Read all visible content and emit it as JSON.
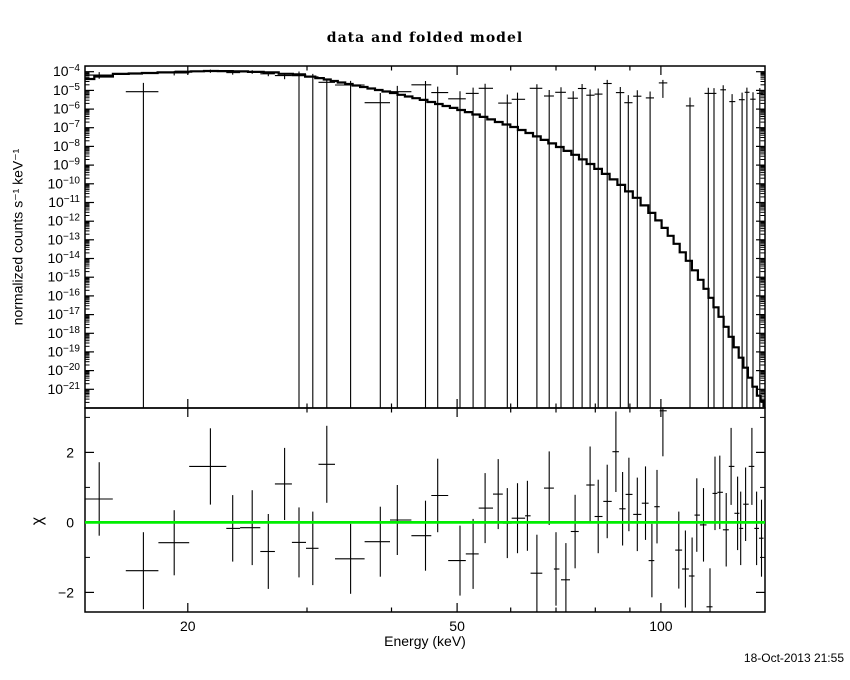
{
  "title": "data and folded model",
  "timestamp": "18-Oct-2013 21:55",
  "chart_data": {
    "type": "scatter",
    "title": "data and folded model",
    "xlabel": "Energy (keV)",
    "xscale": "log",
    "xlim": [
      14.1,
      142.5
    ],
    "x_ticks": {
      "major": [
        {
          "v": 20,
          "label": "20"
        },
        {
          "v": 50,
          "label": "50"
        },
        {
          "v": 100,
          "label": "100"
        }
      ],
      "minor": [
        30,
        40,
        60,
        70,
        80,
        90
      ]
    },
    "spectrum": {
      "ylabel": "normalized counts s⁻¹ keV⁻¹",
      "yscale": "log",
      "ylim_log": [
        -22,
        -3.695
      ],
      "y_tick_exponents": [
        -4,
        -5,
        -6,
        -7,
        -8,
        -9,
        -10,
        -11,
        -12,
        -13,
        -14,
        -15,
        -16,
        -17,
        -18,
        -19,
        -20,
        -21
      ],
      "model": {
        "x": [
          14.1,
          16.0,
          17.5,
          19.8,
          21.6,
          23.9,
          26.6,
          29.3,
          31.4,
          32.9,
          34.6,
          36.4,
          38.3,
          40.3,
          42.4,
          44.6,
          47.0,
          49.4,
          52.0,
          54.7,
          57.6,
          60.7,
          63.9,
          67.3,
          70.9,
          74.7,
          78.7,
          82.9,
          87.4,
          92.1,
          97.1,
          101.3,
          105.5,
          110.0,
          114.6,
          118.6,
          122.7,
          127.0,
          131.4,
          135.5,
          139.7,
          142.5
        ],
        "logy": [
          -4.39,
          -4.12,
          -4.07,
          -4.0,
          -3.96,
          -3.98,
          -4.04,
          -4.18,
          -4.34,
          -4.5,
          -4.66,
          -4.82,
          -4.98,
          -5.14,
          -5.33,
          -5.51,
          -5.73,
          -5.94,
          -6.16,
          -6.42,
          -6.69,
          -6.96,
          -7.28,
          -7.65,
          -8.03,
          -8.45,
          -8.94,
          -9.47,
          -10.06,
          -10.75,
          -11.56,
          -12.36,
          -13.21,
          -14.12,
          -15.14,
          -16.1,
          -17.12,
          -18.19,
          -19.31,
          -20.38,
          -21.34,
          -21.9
        ]
      },
      "points": [
        [
          14.8,
          14.1,
          15.5,
          -4.18,
          -4.02,
          -4.38
        ],
        [
          17.2,
          16.2,
          18.1,
          -5.07,
          -4.6,
          -22
        ],
        [
          19.1,
          18.1,
          20.1,
          -4.07,
          -3.97,
          -4.2
        ],
        [
          21.6,
          20.1,
          22.8,
          -3.97,
          -3.89,
          -4.06
        ],
        [
          23.3,
          22.8,
          23.9,
          -4.05,
          -3.95,
          -4.16
        ],
        [
          24.9,
          23.9,
          25.6,
          -4.01,
          -3.92,
          -4.11
        ],
        [
          26.3,
          25.6,
          26.9,
          -4.11,
          -4.0,
          -4.24
        ],
        [
          27.8,
          26.9,
          28.5,
          -4.21,
          -4.07,
          -4.4
        ],
        [
          29.2,
          28.5,
          29.9,
          -4.11,
          -3.99,
          -22
        ],
        [
          30.6,
          29.9,
          31.2,
          -4.28,
          -4.12,
          -22
        ],
        [
          32.1,
          31.2,
          33.0,
          -4.57,
          -4.37,
          -22
        ],
        [
          34.8,
          33.0,
          36.5,
          -4.71,
          -4.49,
          -22
        ],
        [
          38.5,
          36.5,
          39.8,
          -5.66,
          -5.14,
          -22
        ],
        [
          40.8,
          39.8,
          42.8,
          -5.07,
          -4.76,
          -22
        ],
        [
          44.9,
          42.8,
          45.8,
          -4.7,
          -4.5,
          -22
        ],
        [
          46.8,
          45.8,
          48.5,
          -5.12,
          -4.8,
          -22
        ],
        [
          50.5,
          48.5,
          51.5,
          -5.45,
          -5.05,
          -22
        ],
        [
          52.8,
          51.5,
          53.8,
          -5.16,
          -4.85,
          -22
        ],
        [
          55.0,
          53.8,
          56.5,
          -4.89,
          -4.64,
          -22
        ],
        [
          59.3,
          57.5,
          60.2,
          -5.68,
          -5.22,
          -22
        ],
        [
          61.4,
          60.2,
          63.0,
          -5.48,
          -5.12,
          -22
        ],
        [
          65.6,
          64.0,
          66.8,
          -4.89,
          -4.67,
          -22
        ],
        [
          68.4,
          67.2,
          69.5,
          -5.3,
          -4.98,
          -22
        ],
        [
          71.2,
          69.8,
          72.4,
          -5.1,
          -4.83,
          -22
        ],
        [
          74.2,
          72.8,
          75.4,
          -5.42,
          -5.05,
          -22
        ],
        [
          76.5,
          75.4,
          77.6,
          -4.9,
          -4.66,
          -22
        ],
        [
          78.6,
          77.6,
          79.8,
          -5.26,
          -4.95,
          -22
        ],
        [
          80.8,
          79.8,
          82.0,
          -5.2,
          -4.9,
          -22
        ],
        [
          83.3,
          82.2,
          84.6,
          -4.63,
          -4.44,
          -22
        ],
        [
          87.1,
          85.8,
          88.3,
          -5.12,
          -4.82,
          -22
        ],
        [
          89.5,
          88.3,
          90.8,
          -5.66,
          -5.25,
          -22
        ],
        [
          92.3,
          91.0,
          93.6,
          -5.31,
          -4.99,
          -22
        ],
        [
          96.4,
          95.0,
          97.7,
          -5.4,
          -5.06,
          -22
        ],
        [
          100.7,
          99.3,
          102.2,
          -4.6,
          -4.44,
          -5.4
        ],
        [
          110.4,
          108.9,
          112.0,
          -5.83,
          -5.38,
          -22
        ],
        [
          117.5,
          116.0,
          119.0,
          -5.16,
          -4.86,
          -22
        ],
        [
          119.8,
          119.0,
          120.8,
          -5.16,
          -4.88,
          -22
        ],
        [
          123.6,
          122.4,
          124.8,
          -4.97,
          -4.73,
          -22
        ],
        [
          127.4,
          126.2,
          128.8,
          -5.6,
          -5.2,
          -22
        ],
        [
          131.8,
          130.4,
          133.0,
          -5.5,
          -5.12,
          -22
        ],
        [
          134.0,
          133.0,
          135.2,
          -5.1,
          -4.85,
          -22
        ],
        [
          136.8,
          135.5,
          138.0,
          -5.47,
          -5.1,
          -22
        ],
        [
          140.0,
          138.6,
          141.5,
          -5.16,
          -4.88,
          -22
        ]
      ]
    },
    "residuals": {
      "ylabel": "χ",
      "ylim": [
        -2.56,
        3.27
      ],
      "y_ticks": {
        "major": [
          {
            "v": -2,
            "label": "−2"
          },
          {
            "v": 0,
            "label": "0"
          },
          {
            "v": 2,
            "label": "2"
          }
        ],
        "minor": [
          -1,
          1,
          3
        ]
      },
      "zero_line_color": "#00ee00",
      "points": [
        [
          14.8,
          14.1,
          15.5,
          0.67,
          1.05
        ],
        [
          17.2,
          16.2,
          18.1,
          -1.38,
          1.1
        ],
        [
          19.1,
          18.1,
          20.1,
          -0.58,
          0.93
        ],
        [
          21.6,
          20.1,
          22.8,
          1.6,
          1.09
        ],
        [
          23.3,
          22.8,
          23.9,
          -0.17,
          0.95
        ],
        [
          24.9,
          23.9,
          25.6,
          -0.15,
          1.07
        ],
        [
          26.3,
          25.6,
          26.9,
          -0.83,
          1.07
        ],
        [
          27.8,
          26.9,
          28.5,
          1.1,
          1.03
        ],
        [
          29.2,
          28.5,
          29.9,
          -0.57,
          1.0
        ],
        [
          30.6,
          29.9,
          31.2,
          -0.74,
          1.05
        ],
        [
          32.1,
          31.2,
          33.0,
          1.66,
          1.1
        ],
        [
          34.8,
          33.0,
          36.5,
          -1.04,
          1.0
        ],
        [
          38.5,
          36.5,
          39.8,
          -0.55,
          1.0
        ],
        [
          40.8,
          39.8,
          42.8,
          0.07,
          1.0
        ],
        [
          44.9,
          42.8,
          45.8,
          -0.38,
          1.0
        ],
        [
          46.8,
          45.8,
          48.5,
          0.77,
          1.05
        ],
        [
          50.5,
          48.5,
          51.5,
          -1.09,
          1.0
        ],
        [
          52.8,
          51.5,
          53.8,
          -0.9,
          1.0
        ],
        [
          55.0,
          53.8,
          56.5,
          0.41,
          1.0
        ],
        [
          57.5,
          56.5,
          58.4,
          0.81,
          1.0
        ],
        [
          59.3,
          58.4,
          60.2,
          -0.02,
          1.0
        ],
        [
          61.4,
          60.2,
          63.0,
          0.12,
          1.0
        ],
        [
          63.5,
          63.0,
          64.2,
          0.19,
          1.0
        ],
        [
          65.6,
          64.2,
          66.8,
          -1.45,
          1.1
        ],
        [
          68.4,
          67.2,
          69.5,
          0.98,
          1.05
        ],
        [
          70.0,
          69.5,
          70.8,
          -1.33,
          1.05
        ],
        [
          72.4,
          71.2,
          73.4,
          -1.64,
          1.05
        ],
        [
          74.7,
          73.6,
          75.6,
          -0.26,
          1.05
        ],
        [
          78.6,
          77.6,
          79.8,
          1.07,
          1.1
        ],
        [
          80.8,
          79.8,
          82.0,
          0.17,
          1.05
        ],
        [
          83.3,
          82.2,
          84.6,
          0.6,
          1.05
        ],
        [
          85.8,
          84.8,
          86.7,
          2.02,
          1.15
        ],
        [
          87.8,
          86.8,
          88.7,
          0.39,
          1.05
        ],
        [
          89.7,
          88.7,
          90.8,
          0.8,
          1.05
        ],
        [
          92.3,
          91.0,
          93.6,
          0.23,
          1.05
        ],
        [
          94.9,
          93.7,
          95.9,
          0.55,
          1.05
        ],
        [
          97.0,
          95.9,
          97.8,
          -1.09,
          1.05
        ],
        [
          98.7,
          97.8,
          99.6,
          0.45,
          1.05
        ],
        [
          100.7,
          99.6,
          102.0,
          3.19,
          1.3
        ],
        [
          106.3,
          105.0,
          107.5,
          -0.79,
          1.1
        ],
        [
          108.7,
          107.5,
          110.0,
          -1.33,
          1.1
        ],
        [
          111.2,
          110.0,
          112.1,
          -1.53,
          1.1
        ],
        [
          113.0,
          112.1,
          114.2,
          0.21,
          1.05
        ],
        [
          115.6,
          114.2,
          116.8,
          -0.07,
          1.05
        ],
        [
          118.2,
          116.8,
          119.2,
          -2.41,
          1.1
        ],
        [
          120.2,
          119.2,
          121.2,
          0.83,
          1.05
        ],
        [
          122.2,
          121.2,
          123.5,
          0.86,
          1.05
        ],
        [
          124.9,
          123.5,
          126.0,
          -0.21,
          1.05
        ],
        [
          127.0,
          126.0,
          128.4,
          1.6,
          1.1
        ],
        [
          129.8,
          128.4,
          130.6,
          0.26,
          1.05
        ],
        [
          131.2,
          130.6,
          132.3,
          -0.17,
          1.05
        ],
        [
          133.4,
          132.3,
          134.8,
          0.52,
          1.05
        ],
        [
          136.3,
          134.8,
          137.4,
          1.6,
          1.1
        ],
        [
          138.5,
          137.4,
          139.6,
          -0.17,
          1.05
        ],
        [
          140.8,
          139.6,
          141.8,
          -0.45,
          1.1
        ]
      ]
    }
  }
}
